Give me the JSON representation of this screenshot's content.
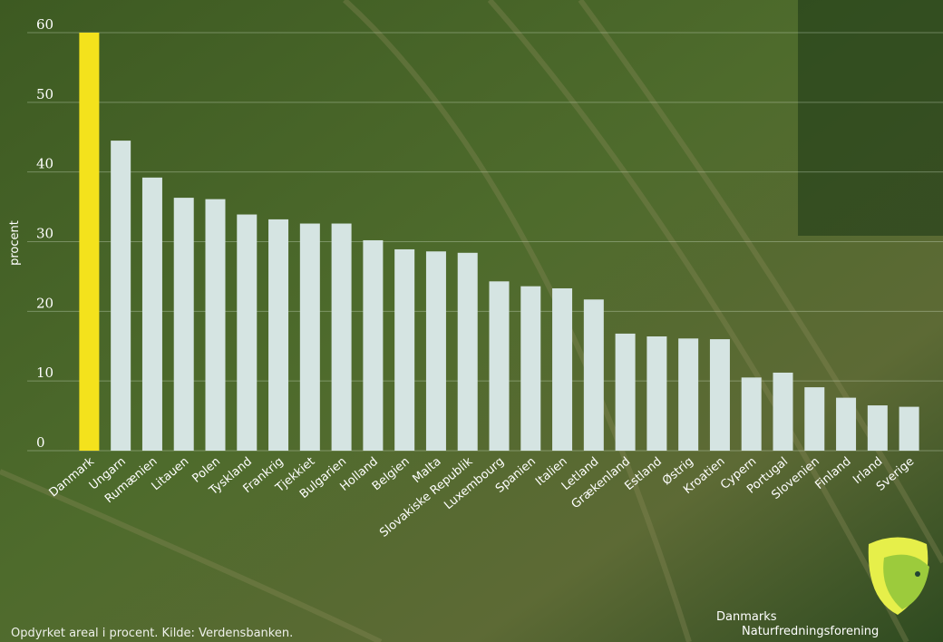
{
  "chart_data": {
    "type": "bar",
    "y_axis_label": "procent",
    "footer": "Opdyrket areal i procent. Kilde: Verdensbanken.",
    "logo_text": [
      "Danmarks",
      "Naturfredningsforening"
    ],
    "categories": [
      "Danmark",
      "Ungarn",
      "Rumænien",
      "Litauen",
      "Polen",
      "Tyskland",
      "Frankrig",
      "Tjekkiet",
      "Bulgarien",
      "Holland",
      "Belgien",
      "Malta",
      "Slovakiske Republik",
      "Luxembourg",
      "Spanien",
      "Italien",
      "Letland",
      "Grækenland",
      "Estland",
      "Østrig",
      "Kroatien",
      "Cypern",
      "Portugal",
      "Slovenien",
      "Finland",
      "Irland",
      "Sverige"
    ],
    "values": [
      60,
      44.5,
      39.2,
      36.3,
      36.1,
      33.9,
      33.2,
      32.6,
      32.6,
      30.2,
      28.9,
      28.6,
      28.4,
      24.3,
      23.6,
      23.3,
      21.7,
      16.8,
      16.4,
      16.1,
      16.0,
      10.5,
      11.2,
      9.1,
      7.6,
      6.5,
      6.3
    ],
    "colors": [
      "#f4e21c",
      "#d5e4e2",
      "#d5e4e2",
      "#d5e4e2",
      "#d5e4e2",
      "#d5e4e2",
      "#d5e4e2",
      "#d5e4e2",
      "#d5e4e2",
      "#d5e4e2",
      "#d5e4e2",
      "#d5e4e2",
      "#d5e4e2",
      "#d5e4e2",
      "#d5e4e2",
      "#d5e4e2",
      "#d5e4e2",
      "#d5e4e2",
      "#d5e4e2",
      "#d5e4e2",
      "#d5e4e2",
      "#d5e4e2",
      "#d5e4e2",
      "#d5e4e2",
      "#d5e4e2",
      "#d5e4e2",
      "#d5e4e2"
    ],
    "label_colors": [
      "#f4e21c",
      "#ffffff",
      "#ffffff",
      "#ffffff",
      "#ffffff",
      "#ffffff",
      "#ffffff",
      "#ffffff",
      "#ffffff",
      "#ffffff",
      "#ffffff",
      "#ffffff",
      "#ffffff",
      "#ffffff",
      "#ffffff",
      "#ffffff",
      "#ffffff",
      "#ffffff",
      "#ffffff",
      "#ffffff",
      "#ffffff",
      "#ffffff",
      "#ffffff",
      "#ffffff",
      "#ffffff",
      "#ffffff",
      "#ffffff"
    ],
    "ylim": [
      0,
      60
    ],
    "yticks": [
      0,
      10,
      20,
      30,
      40,
      50,
      60
    ],
    "grid": true
  }
}
